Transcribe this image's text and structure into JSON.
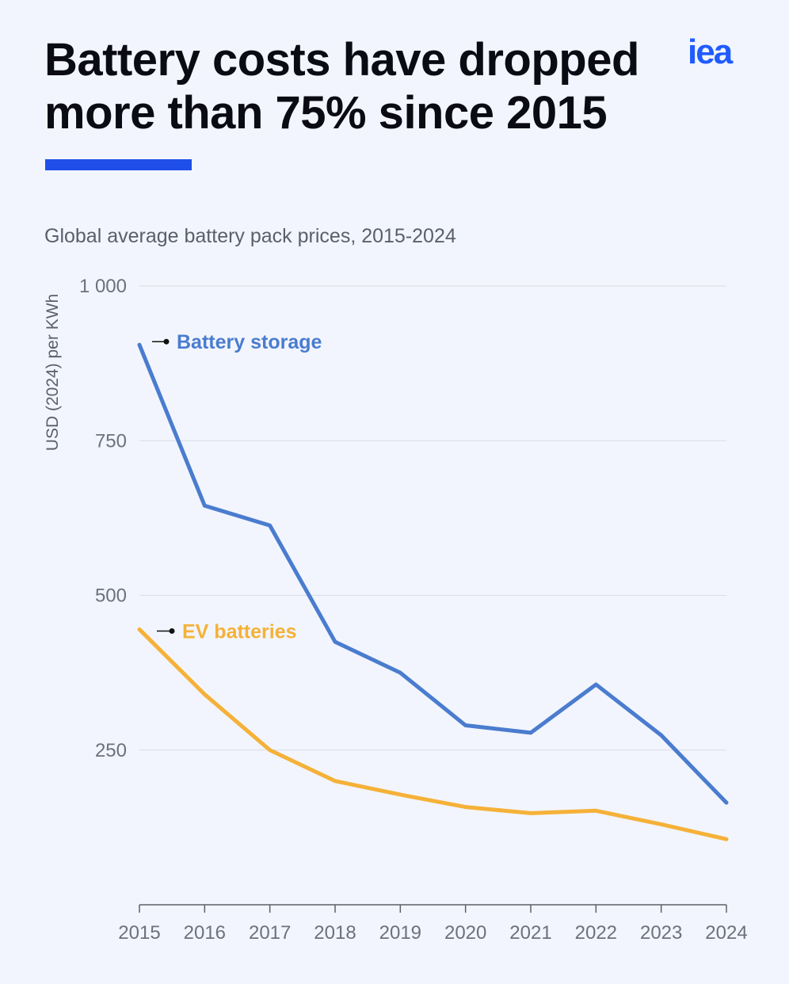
{
  "header": {
    "title_line1": "Battery costs have dropped",
    "title_line2": "more than 75% since 2015",
    "logo_text": "iea",
    "accent_color": "#1f4fe8"
  },
  "chart_data": {
    "type": "line",
    "title": "Global average battery pack prices, 2015-2024",
    "ylabel": "USD (2024) per KWh",
    "xlabel": "",
    "x": [
      "2015",
      "2016",
      "2017",
      "2018",
      "2019",
      "2020",
      "2021",
      "2022",
      "2023",
      "2024"
    ],
    "y_ticks": [
      250,
      500,
      750,
      1000
    ],
    "y_tick_labels": [
      "250",
      "500",
      "750",
      "1 000"
    ],
    "ylim": [
      0,
      1000
    ],
    "grid": true,
    "series": [
      {
        "name": "Battery storage",
        "color": "#4a7ccf",
        "values": [
          905,
          645,
          613,
          425,
          375,
          290,
          278,
          356,
          274,
          165
        ]
      },
      {
        "name": "EV batteries",
        "color": "#f5b138",
        "values": [
          445,
          340,
          250,
          200,
          178,
          158,
          148,
          152,
          130,
          106
        ]
      }
    ]
  }
}
